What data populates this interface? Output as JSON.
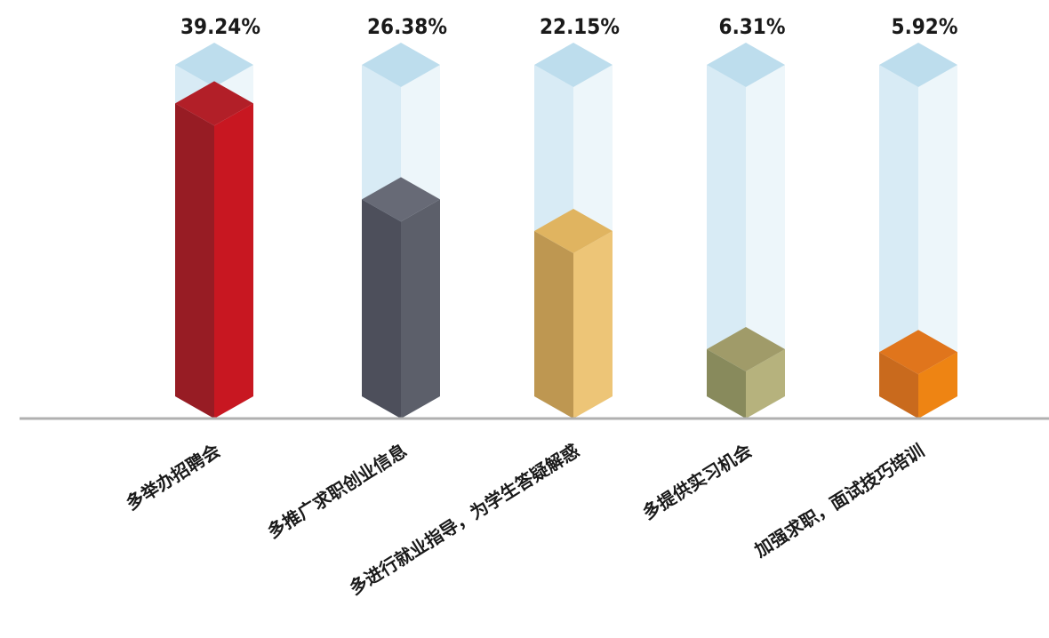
{
  "chart_data": {
    "type": "bar",
    "categories": [
      "多举办招聘会",
      "多推广求职创业信息",
      "多进行就业指导，为学生答疑解惑",
      "多提供实习机会",
      "加强求职，面试技巧培训"
    ],
    "values": [
      39.24,
      26.38,
      22.15,
      6.31,
      5.92
    ],
    "value_labels": [
      "39.24%",
      "26.38%",
      "22.15%",
      "6.31%",
      "5.92%"
    ],
    "unit": "%",
    "ylim": [
      0,
      50
    ],
    "grid": false,
    "legend": "none",
    "colors": [
      {
        "left": "#971c24",
        "right": "#c81721",
        "top": "#b21f28"
      },
      {
        "left": "#4d4f5b",
        "right": "#5c5f6a",
        "top": "#676a76"
      },
      {
        "left": "#be9751",
        "right": "#edc577",
        "top": "#e0b460"
      },
      {
        "left": "#888a5c",
        "right": "#b6b27d",
        "top": "#a09b69"
      },
      {
        "left": "#c96a1d",
        "right": "#ee8413",
        "top": "#e0751c"
      }
    ],
    "glass_colors": {
      "left": "#d8ebf5",
      "right": "#edf6fa",
      "top": "#bddded"
    },
    "baseline_color": "#b0b0b0"
  }
}
